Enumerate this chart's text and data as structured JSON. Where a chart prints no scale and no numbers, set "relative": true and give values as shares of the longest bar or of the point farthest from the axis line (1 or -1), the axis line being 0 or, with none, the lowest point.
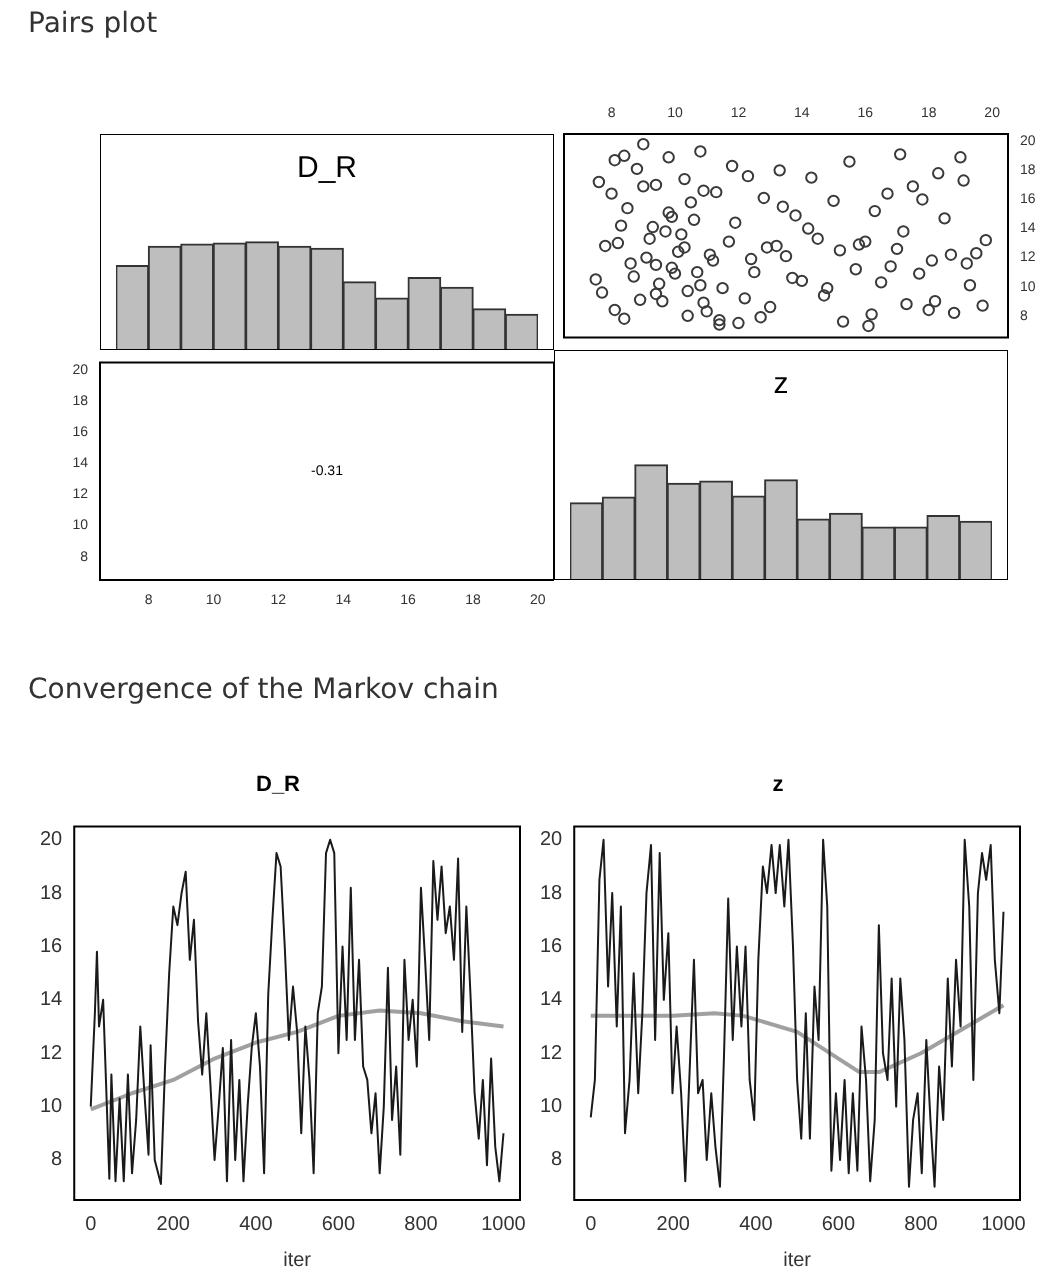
{
  "chart_data": [
    {
      "type": "bar",
      "title": "D_R",
      "annotations": [
        "Pairs plot"
      ],
      "relative": true,
      "color": "#bebebe",
      "categories": [
        null,
        null,
        null,
        null,
        null,
        null,
        null,
        null,
        null,
        null,
        null,
        null,
        null
      ],
      "values": [
        0.78,
        0.96,
        0.98,
        0.99,
        1,
        0.96,
        0.94,
        0.63,
        0.48,
        0.67,
        0.58,
        0.38,
        0.33
      ]
    },
    {
      "type": "scatter",
      "color": "#3a3a3a",
      "marker": "circle",
      "xlim": [
        6.5,
        20.5
      ],
      "ylim": [
        6.5,
        20.5
      ],
      "xticks": [
        8,
        10,
        12,
        14,
        16,
        18,
        20
      ],
      "yticks": [
        8,
        10,
        12,
        14,
        16,
        18,
        20
      ],
      "x": [
        7.5,
        7.8,
        8.1,
        8.3,
        8.6,
        8.9,
        9.2,
        9.5,
        9.8,
        10.1,
        10.4,
        10.7,
        7.6,
        8.0,
        8.4,
        8.8,
        9.1,
        9.4,
        9.7,
        10.0,
        10.3,
        10.6,
        10.9,
        11.2,
        7.7,
        8.2,
        8.7,
        9.0,
        9.3,
        9.6,
        9.9,
        10.2,
        10.5,
        10.8,
        11.1,
        11.4,
        11.7,
        8.1,
        8.5,
        9.0,
        9.4,
        9.8,
        10.3,
        10.8,
        11.3,
        11.8,
        12.3,
        12.8,
        13.3,
        13.8,
        11.0,
        11.5,
        12.0,
        12.5,
        13.0,
        13.5,
        14.0,
        14.5,
        12.2,
        12.7,
        13.2,
        13.7,
        14.2,
        14.7,
        15.2,
        15.7,
        16.2,
        16.7,
        17.2,
        17.7,
        18.2,
        18.7,
        19.2,
        19.7,
        15.0,
        15.5,
        16.0,
        16.5,
        17.0,
        17.5,
        18.0,
        18.5,
        19.0,
        19.5,
        14.3,
        15.3,
        16.3,
        17.3,
        18.3,
        19.3,
        14.8,
        15.8,
        16.8,
        17.8,
        18.8,
        19.8,
        13.4,
        12.4,
        11.4,
        10.4,
        9.4,
        8.4,
        16.1,
        17.1,
        18.1,
        19.1,
        12.9,
        11.9,
        10.9,
        9.9
      ],
      "values": [
        10.5,
        12.8,
        8.4,
        14.2,
        11.6,
        9.1,
        13.3,
        10.2,
        15.1,
        12.4,
        9.7,
        11.0,
        17.2,
        16.4,
        19.0,
        18.1,
        12.0,
        11.5,
        13.8,
        10.9,
        12.7,
        14.6,
        8.9,
        11.8,
        9.6,
        13.0,
        10.7,
        16.9,
        14.1,
        9.0,
        11.3,
        13.6,
        15.8,
        10.1,
        12.2,
        7.7,
        13.1,
        18.7,
        15.4,
        19.8,
        17.0,
        18.9,
        17.4,
        19.3,
        16.5,
        18.3,
        17.6,
        16.1,
        18.0,
        14.9,
        8.3,
        9.9,
        7.5,
        11.0,
        8.6,
        12.1,
        10.4,
        13.3,
        9.2,
        7.9,
        12.8,
        10.6,
        14.0,
        9.4,
        12.5,
        11.2,
        8.1,
        16.4,
        13.8,
        10.9,
        9.0,
        12.2,
        11.6,
        8.7,
        15.9,
        18.6,
        13.1,
        10.3,
        12.6,
        16.9,
        8.4,
        14.7,
        18.9,
        12.3,
        17.5,
        7.6,
        15.2,
        8.8,
        17.8,
        10.1,
        9.9,
        12.9,
        11.4,
        16.0,
        8.2,
        13.2,
        15.5,
        11.9,
        7.4,
        8.0,
        9.5,
        7.8,
        7.3,
        19.1,
        11.8,
        17.3,
        12.7,
        14.4,
        16.6,
        14.8
      ]
    },
    {
      "type": "scatter",
      "annotations": [
        "-0.31"
      ],
      "xlim": [
        6.5,
        20.5
      ],
      "xticks": [
        8,
        10,
        12,
        14,
        16,
        18,
        20
      ],
      "ylim": [
        6.5,
        20.5
      ],
      "yticks": [
        8,
        10,
        12,
        14,
        16,
        18,
        20
      ]
    },
    {
      "type": "bar",
      "title": "z",
      "relative": true,
      "color": "#bebebe",
      "categories": [
        null,
        null,
        null,
        null,
        null,
        null,
        null,
        null,
        null,
        null,
        null,
        null,
        null
      ],
      "values": [
        0.67,
        0.72,
        1,
        0.84,
        0.86,
        0.73,
        0.87,
        0.53,
        0.58,
        0.46,
        0.46,
        0.56,
        0.51
      ]
    },
    {
      "type": "line",
      "title": "D_R",
      "xlabel": "iter",
      "annotations": [
        "Convergence of the Markov chain"
      ],
      "xlim": [
        -40,
        1040
      ],
      "xticks": [
        0,
        200,
        400,
        600,
        800,
        1000
      ],
      "ylim": [
        6.5,
        20.5
      ],
      "yticks": [
        8,
        10,
        12,
        14,
        16,
        18,
        20
      ],
      "series": [
        {
          "color": "#1a1a1a",
          "x": [
            0,
            10,
            15,
            20,
            30,
            35,
            45,
            50,
            60,
            70,
            80,
            90,
            100,
            110,
            120,
            130,
            140,
            145,
            155,
            170,
            180,
            190,
            200,
            210,
            220,
            230,
            240,
            250,
            260,
            270,
            280,
            290,
            300,
            310,
            320,
            330,
            340,
            350,
            360,
            370,
            380,
            390,
            400,
            410,
            420,
            430,
            440,
            450,
            460,
            470,
            480,
            490,
            500,
            510,
            520,
            530,
            540,
            550,
            560,
            570,
            580,
            590,
            600,
            610,
            620,
            630,
            640,
            650,
            660,
            670,
            680,
            690,
            700,
            710,
            720,
            730,
            740,
            750,
            760,
            770,
            780,
            790,
            800,
            810,
            820,
            830,
            840,
            850,
            860,
            870,
            880,
            890,
            900,
            910,
            920,
            930,
            940,
            950,
            960,
            970,
            980,
            990,
            1000
          ],
          "values": [
            10.0,
            13.5,
            15.8,
            13.0,
            14.0,
            11.8,
            7.3,
            11.2,
            7.2,
            10.3,
            7.2,
            11.2,
            7.5,
            9.5,
            13.0,
            10.5,
            8.2,
            12.3,
            8.0,
            7.1,
            11.5,
            15.0,
            17.5,
            16.8,
            18.0,
            18.8,
            15.5,
            17.0,
            13.2,
            11.2,
            13.5,
            10.8,
            8.0,
            10.0,
            12.2,
            7.2,
            12.5,
            8.0,
            11.0,
            7.2,
            10.0,
            12.2,
            13.5,
            11.5,
            7.5,
            14.2,
            17.0,
            19.5,
            19.0,
            16.0,
            12.5,
            14.5,
            12.8,
            9.0,
            13.0,
            11.0,
            7.5,
            13.5,
            14.5,
            19.5,
            20.0,
            19.5,
            12.0,
            16.0,
            12.5,
            18.2,
            12.5,
            15.5,
            11.5,
            11.0,
            9.0,
            10.5,
            7.5,
            10.0,
            15.2,
            9.5,
            11.5,
            8.2,
            15.5,
            12.5,
            14.0,
            11.5,
            18.2,
            15.5,
            12.5,
            19.2,
            17.0,
            19.0,
            16.5,
            17.5,
            15.5,
            19.3,
            12.8,
            17.5,
            14.2,
            10.5,
            8.8,
            11.0,
            7.8,
            11.8,
            8.5,
            7.2,
            9.0
          ]
        },
        {
          "color": "#a0a0a0",
          "x": [
            0,
            100,
            200,
            300,
            400,
            500,
            600,
            700,
            800,
            900,
            1000
          ],
          "values": [
            9.9,
            10.5,
            11.0,
            11.8,
            12.4,
            12.8,
            13.4,
            13.6,
            13.5,
            13.2,
            13.0
          ]
        }
      ]
    },
    {
      "type": "line",
      "title": "z",
      "xlabel": "iter",
      "xlim": [
        -40,
        1040
      ],
      "xticks": [
        0,
        200,
        400,
        600,
        800,
        1000
      ],
      "ylim": [
        6.5,
        20.5
      ],
      "yticks": [
        8,
        10,
        12,
        14,
        16,
        18,
        20
      ],
      "series": [
        {
          "color": "#1a1a1a",
          "x": [
            0,
            10,
            21,
            31,
            42,
            52,
            63,
            73,
            83,
            94,
            104,
            115,
            125,
            135,
            146,
            156,
            167,
            177,
            188,
            198,
            208,
            219,
            229,
            240,
            250,
            260,
            271,
            281,
            292,
            302,
            313,
            323,
            333,
            344,
            354,
            365,
            375,
            385,
            396,
            406,
            417,
            427,
            438,
            448,
            458,
            469,
            479,
            490,
            500,
            510,
            521,
            531,
            542,
            552,
            563,
            573,
            583,
            594,
            604,
            615,
            625,
            635,
            646,
            656,
            667,
            677,
            688,
            698,
            708,
            719,
            729,
            740,
            750,
            760,
            771,
            781,
            792,
            802,
            813,
            823,
            833,
            844,
            854,
            865,
            875,
            885,
            896,
            906,
            917,
            927,
            938,
            948,
            958,
            969,
            979,
            990,
            1000
          ],
          "values": [
            9.6,
            11.0,
            18.5,
            20.0,
            14.5,
            18.0,
            13.0,
            17.5,
            9.0,
            11.0,
            15.0,
            10.5,
            13.5,
            18.0,
            19.8,
            12.5,
            19.5,
            14.0,
            16.5,
            10.5,
            13.0,
            10.5,
            7.2,
            11.5,
            15.5,
            10.5,
            11.0,
            8.0,
            10.5,
            8.5,
            7.0,
            12.0,
            17.8,
            12.5,
            16.0,
            13.0,
            16.0,
            11.0,
            9.5,
            15.5,
            19.0,
            18.0,
            19.8,
            18.0,
            19.8,
            17.5,
            20.0,
            16.0,
            11.0,
            8.8,
            13.5,
            8.8,
            14.5,
            12.5,
            20.0,
            17.5,
            7.6,
            10.5,
            8.0,
            11.0,
            7.5,
            10.5,
            7.6,
            13.0,
            11.0,
            7.2,
            9.5,
            16.8,
            12.0,
            11.0,
            14.8,
            10.0,
            14.8,
            12.5,
            7.0,
            9.5,
            10.5,
            7.5,
            12.5,
            9.5,
            7.0,
            11.5,
            9.5,
            14.8,
            11.5,
            15.5,
            13.0,
            20.0,
            17.5,
            11.0,
            18.0,
            19.5,
            18.5,
            19.8,
            15.5,
            13.5,
            17.3
          ]
        },
        {
          "color": "#a0a0a0",
          "x": [
            0,
            100,
            200,
            300,
            370,
            500,
            600,
            650,
            700,
            800,
            900,
            1000
          ],
          "values": [
            13.4,
            13.4,
            13.4,
            13.5,
            13.4,
            12.8,
            11.8,
            11.3,
            11.3,
            12.0,
            12.9,
            13.8
          ]
        }
      ]
    }
  ]
}
